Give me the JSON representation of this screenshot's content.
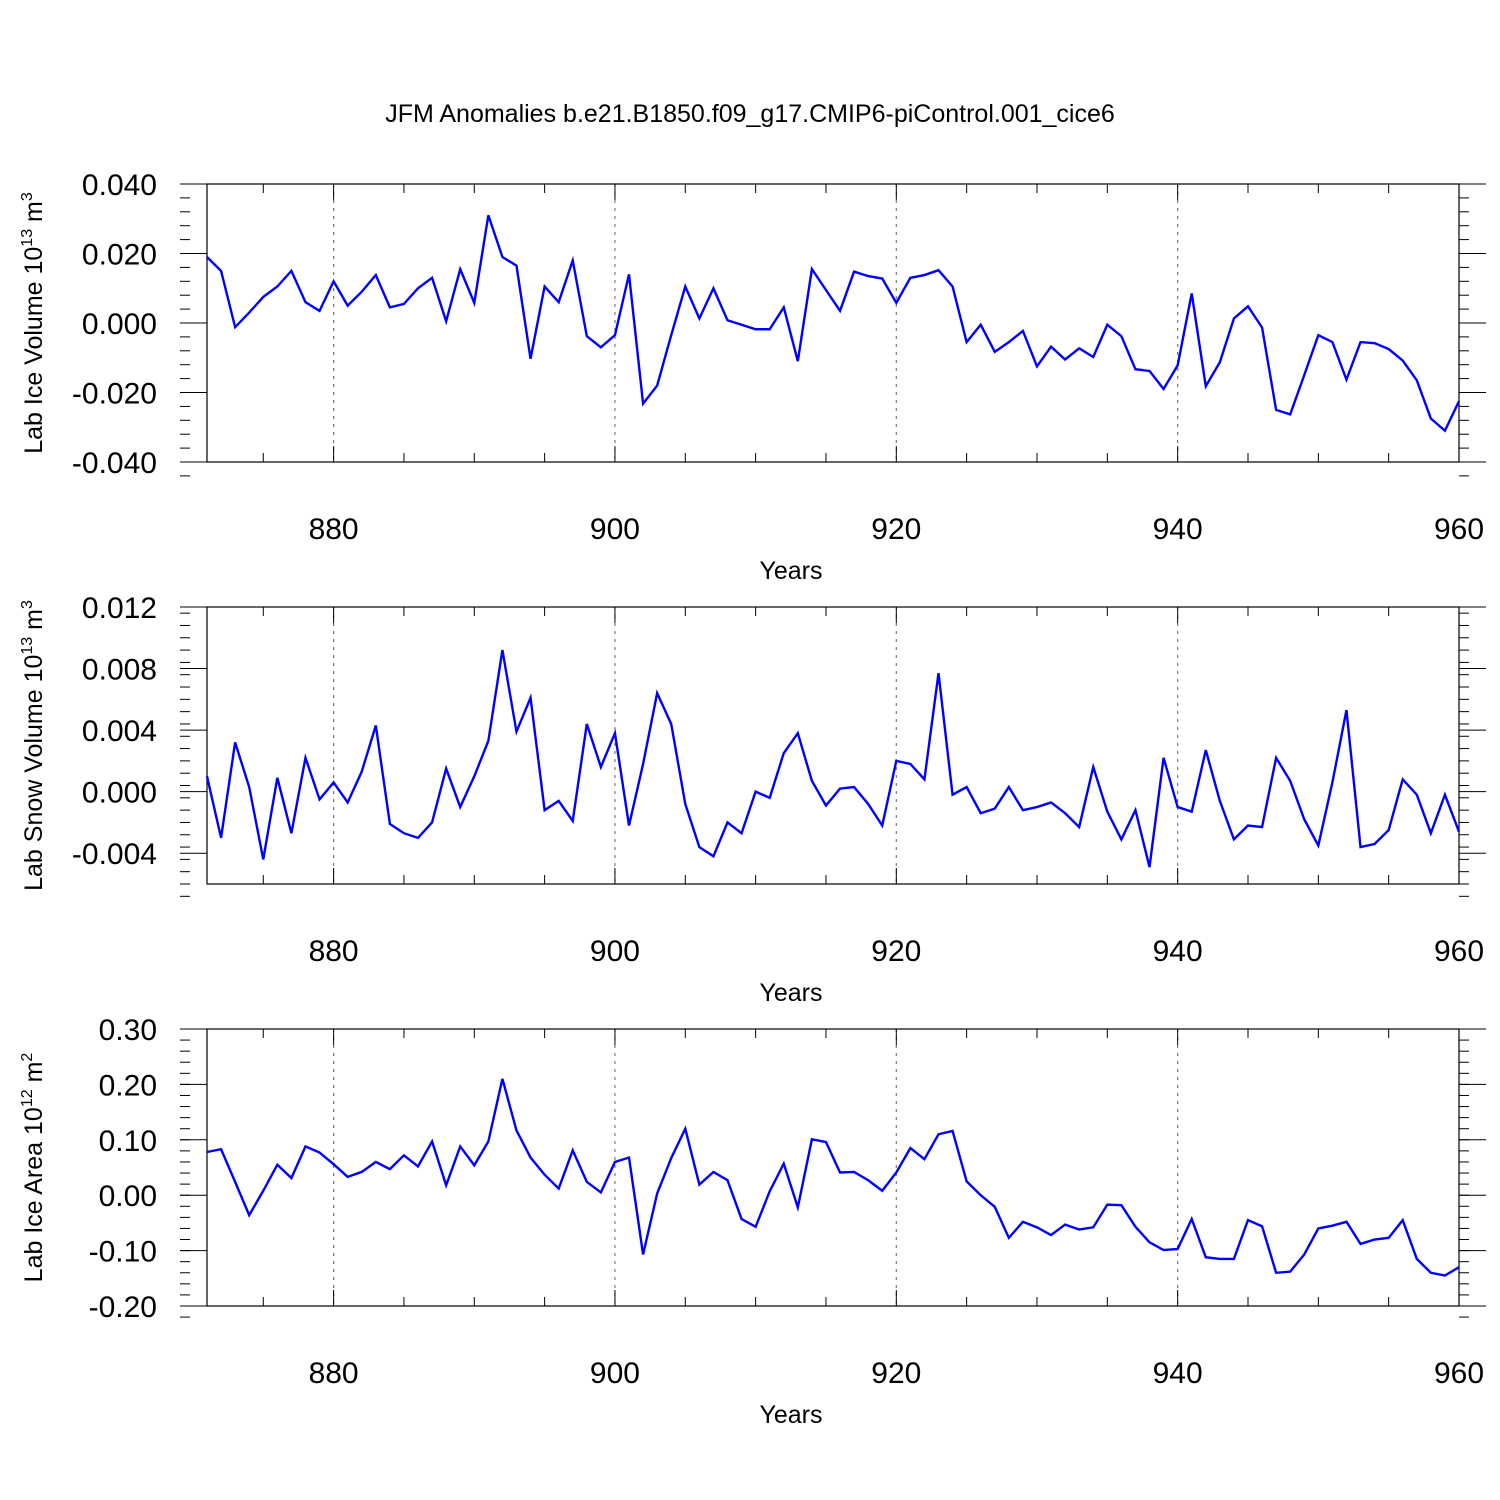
{
  "figure_title": "JFM Anomalies b.e21.B1850.f09_g17.CMIP6-piControl.001_cice6",
  "colors": {
    "line": "#0000ff",
    "axes": "#000000",
    "grid": "#777777"
  },
  "chart_data": [
    {
      "type": "line",
      "title": "JFM Anomalies b.e21.B1850.f09_g17.CMIP6-piControl.001_cice6",
      "xlabel": "Years",
      "ylabel": {
        "text": "Lab Ice Volume 10",
        "exp": "13",
        "unit": " m",
        "unit_exp": "3"
      },
      "xlim": [
        871,
        960
      ],
      "ylim": [
        -0.04,
        0.04
      ],
      "xticks": [
        880,
        900,
        920,
        940,
        960
      ],
      "yticks": [
        -0.04,
        -0.02,
        0.0,
        0.02,
        0.04
      ],
      "ytick_labels": [
        "-0.040",
        "-0.020",
        "0.000",
        "0.020",
        "0.040"
      ],
      "grid_x": [
        880,
        900,
        920,
        940
      ],
      "series": [
        {
          "name": "Lab Ice Volume",
          "x_start": 871,
          "values": [
            0.019,
            0.015,
            -0.0012,
            0.003,
            0.0075,
            0.0105,
            0.015,
            0.006,
            0.0035,
            0.012,
            0.005,
            0.009,
            0.0138,
            0.0045,
            0.0055,
            0.01,
            0.013,
            0.0005,
            0.0155,
            0.0058,
            0.031,
            0.019,
            0.0165,
            -0.0103,
            0.0105,
            0.006,
            0.018,
            -0.0038,
            -0.007,
            -0.0035,
            0.014,
            -0.0232,
            -0.018,
            -0.0035,
            0.0105,
            0.0013,
            0.01,
            0.0008,
            -0.0005,
            -0.0018,
            -0.0018,
            0.0045,
            -0.011,
            0.0155,
            0.0095,
            0.0035,
            0.0148,
            0.0135,
            0.0128,
            0.0058,
            0.013,
            0.0138,
            0.0152,
            0.0105,
            -0.0055,
            -0.0005,
            -0.0083,
            -0.0055,
            -0.0023,
            -0.0125,
            -0.0068,
            -0.0105,
            -0.0073,
            -0.0098,
            -0.0005,
            -0.0038,
            -0.0133,
            -0.0138,
            -0.019,
            -0.0122,
            0.0085,
            -0.0182,
            -0.0113,
            0.0013,
            0.0048,
            -0.0013,
            -0.025,
            -0.0263,
            -0.015,
            -0.0035,
            -0.0055,
            -0.0163,
            -0.0055,
            -0.0058,
            -0.0075,
            -0.0108,
            -0.0165,
            -0.0275,
            -0.031,
            -0.0225
          ]
        }
      ]
    },
    {
      "type": "line",
      "xlabel": "Years",
      "ylabel": {
        "text": "Lab Snow Volume 10",
        "exp": "13",
        "unit": " m",
        "unit_exp": "3"
      },
      "xlim": [
        871,
        960
      ],
      "ylim": [
        -0.006,
        0.012
      ],
      "xticks": [
        880,
        900,
        920,
        940,
        960
      ],
      "yticks": [
        -0.004,
        0.0,
        0.004,
        0.008,
        0.012
      ],
      "ytick_labels": [
        "-0.004",
        "0.000",
        "0.004",
        "0.008",
        "0.012"
      ],
      "grid_x": [
        880,
        900,
        920,
        940
      ],
      "series": [
        {
          "name": "Lab Snow Volume",
          "x_start": 871,
          "values": [
            0.001,
            -0.003,
            0.0032,
            0.0003,
            -0.0044,
            0.0009,
            -0.0027,
            0.0022,
            -0.0005,
            0.0006,
            -0.0007,
            0.0013,
            0.0043,
            -0.0021,
            -0.0027,
            -0.003,
            -0.002,
            0.0015,
            -0.001,
            0.001,
            0.0033,
            0.0092,
            0.0039,
            0.0061,
            -0.0012,
            -0.0006,
            -0.0019,
            0.0044,
            0.0016,
            0.0038,
            -0.0022,
            0.0018,
            0.0064,
            0.0044,
            -0.0008,
            -0.0036,
            -0.0042,
            -0.002,
            -0.0027,
            0.0,
            -0.0004,
            0.0025,
            0.0038,
            0.0007,
            -0.0009,
            0.0002,
            0.0003,
            -0.0008,
            -0.0022,
            0.002,
            0.0018,
            0.0008,
            0.0077,
            -0.0002,
            0.0003,
            -0.0014,
            -0.0011,
            0.0003,
            -0.0012,
            -0.001,
            -0.0007,
            -0.0014,
            -0.0023,
            0.0016,
            -0.0013,
            -0.0031,
            -0.0012,
            -0.0049,
            0.0022,
            -0.001,
            -0.0013,
            0.0027,
            -0.0006,
            -0.0031,
            -0.0022,
            -0.0023,
            0.0022,
            0.0007,
            -0.0018,
            -0.0035,
            0.0006,
            0.0053,
            -0.0036,
            -0.0034,
            -0.0025,
            0.0008,
            -0.0002,
            -0.0027,
            -0.0002,
            -0.0026
          ]
        }
      ]
    },
    {
      "type": "line",
      "xlabel": "Years",
      "ylabel": {
        "text": "Lab Ice Area 10",
        "exp": "12",
        "unit": " m",
        "unit_exp": "2"
      },
      "xlim": [
        871,
        960
      ],
      "ylim": [
        -0.2,
        0.3
      ],
      "xticks": [
        880,
        900,
        920,
        940,
        960
      ],
      "yticks": [
        -0.2,
        -0.1,
        0.0,
        0.1,
        0.2,
        0.3
      ],
      "ytick_labels": [
        "-0.20",
        "-0.10",
        "0.00",
        "0.10",
        "0.20",
        "0.30"
      ],
      "grid_x": [
        880,
        900,
        920,
        940
      ],
      "series": [
        {
          "name": "Lab Ice Area",
          "x_start": 871,
          "values": [
            0.078,
            0.083,
            0.024,
            -0.036,
            0.008,
            0.055,
            0.031,
            0.088,
            0.077,
            0.056,
            0.033,
            0.042,
            0.06,
            0.047,
            0.072,
            0.052,
            0.097,
            0.018,
            0.088,
            0.054,
            0.097,
            0.21,
            0.117,
            0.068,
            0.037,
            0.012,
            0.081,
            0.024,
            0.005,
            0.06,
            0.068,
            -0.107,
            0.003,
            0.067,
            0.12,
            0.019,
            0.042,
            0.027,
            -0.043,
            -0.057,
            0.007,
            0.057,
            -0.022,
            0.101,
            0.096,
            0.041,
            0.042,
            0.027,
            0.008,
            0.041,
            0.085,
            0.065,
            0.11,
            0.116,
            0.025,
            0.0,
            -0.021,
            -0.077,
            -0.048,
            -0.058,
            -0.072,
            -0.053,
            -0.062,
            -0.058,
            -0.017,
            -0.018,
            -0.057,
            -0.085,
            -0.099,
            -0.097,
            -0.043,
            -0.112,
            -0.115,
            -0.115,
            -0.045,
            -0.056,
            -0.14,
            -0.138,
            -0.107,
            -0.06,
            -0.055,
            -0.048,
            -0.088,
            -0.08,
            -0.077,
            -0.045,
            -0.115,
            -0.14,
            -0.145,
            -0.13
          ]
        }
      ]
    }
  ]
}
